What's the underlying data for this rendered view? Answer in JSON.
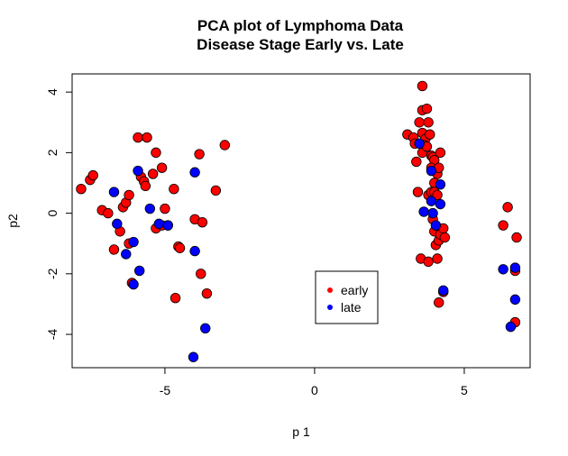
{
  "chart_data": {
    "type": "scatter",
    "title": "PCA plot of Lymphoma Data",
    "subtitle": "Disease Stage Early vs. Late",
    "xlabel": "p 1",
    "ylabel": "p2",
    "xlim": [
      -8.1,
      7.2
    ],
    "ylim": [
      -5.1,
      4.6
    ],
    "xticks": [
      -5,
      0,
      5
    ],
    "yticks": [
      -4,
      -2,
      0,
      2,
      4
    ],
    "xtick_labels": [
      "-5",
      "0",
      "5"
    ],
    "ytick_labels": [
      "-4",
      "-2",
      "0",
      "2",
      "4"
    ],
    "grid": false,
    "legend_position": "center-bottom",
    "series": [
      {
        "name": "early",
        "color": "#ff0000",
        "points": [
          [
            -7.8,
            0.8
          ],
          [
            -7.5,
            1.1
          ],
          [
            -7.4,
            1.25
          ],
          [
            -7.1,
            0.1
          ],
          [
            -6.9,
            0.0
          ],
          [
            -6.7,
            -1.2
          ],
          [
            -6.5,
            -0.6
          ],
          [
            -6.4,
            0.2
          ],
          [
            -6.3,
            0.35
          ],
          [
            -6.2,
            -1.0
          ],
          [
            -6.2,
            0.6
          ],
          [
            -6.1,
            -2.3
          ],
          [
            -5.9,
            2.5
          ],
          [
            -5.8,
            1.2
          ],
          [
            -5.7,
            1.05
          ],
          [
            -5.65,
            0.9
          ],
          [
            -5.6,
            2.5
          ],
          [
            -5.4,
            1.3
          ],
          [
            -5.3,
            2.0
          ],
          [
            -5.3,
            -0.5
          ],
          [
            -5.1,
            1.5
          ],
          [
            -5.1,
            -0.4
          ],
          [
            -5.0,
            0.15
          ],
          [
            -4.9,
            -0.4
          ],
          [
            -4.7,
            0.8
          ],
          [
            -4.55,
            -1.1
          ],
          [
            -4.5,
            -1.15
          ],
          [
            -4.65,
            -2.8
          ],
          [
            -4.0,
            -0.2
          ],
          [
            -3.85,
            1.95
          ],
          [
            -3.8,
            -2.0
          ],
          [
            -3.75,
            -0.3
          ],
          [
            -3.6,
            -2.65
          ],
          [
            -3.3,
            0.75
          ],
          [
            -3.0,
            2.25
          ],
          [
            3.1,
            2.6
          ],
          [
            3.3,
            2.5
          ],
          [
            3.35,
            2.3
          ],
          [
            3.4,
            1.7
          ],
          [
            3.45,
            0.7
          ],
          [
            3.5,
            3.0
          ],
          [
            3.6,
            3.4
          ],
          [
            3.6,
            4.2
          ],
          [
            3.6,
            2.65
          ],
          [
            3.7,
            2.45
          ],
          [
            3.65,
            2.25
          ],
          [
            3.6,
            2.0
          ],
          [
            3.75,
            3.45
          ],
          [
            3.8,
            3.0
          ],
          [
            3.85,
            2.6
          ],
          [
            3.75,
            2.2
          ],
          [
            3.9,
            1.9
          ],
          [
            3.95,
            1.85
          ],
          [
            4.0,
            1.75
          ],
          [
            3.9,
            1.5
          ],
          [
            4.0,
            1.0
          ],
          [
            4.1,
            1.3
          ],
          [
            4.15,
            1.5
          ],
          [
            4.2,
            2.0
          ],
          [
            3.8,
            0.6
          ],
          [
            3.9,
            0.7
          ],
          [
            4.0,
            0.7
          ],
          [
            4.1,
            0.6
          ],
          [
            3.95,
            -0.2
          ],
          [
            4.0,
            -0.6
          ],
          [
            4.05,
            -1.05
          ],
          [
            4.15,
            -0.9
          ],
          [
            4.2,
            -0.7
          ],
          [
            4.3,
            -0.5
          ],
          [
            4.35,
            -0.8
          ],
          [
            3.55,
            -1.5
          ],
          [
            3.8,
            -1.6
          ],
          [
            4.1,
            -1.5
          ],
          [
            4.15,
            -2.95
          ],
          [
            4.3,
            -2.6
          ],
          [
            6.3,
            -0.4
          ],
          [
            6.45,
            0.2
          ],
          [
            6.75,
            -0.8
          ],
          [
            6.7,
            -1.9
          ],
          [
            6.7,
            -3.6
          ]
        ]
      },
      {
        "name": "late",
        "color": "#0000ff",
        "points": [
          [
            -6.7,
            0.7
          ],
          [
            -6.6,
            -0.35
          ],
          [
            -6.3,
            -1.35
          ],
          [
            -6.05,
            -0.95
          ],
          [
            -6.05,
            -2.35
          ],
          [
            -5.9,
            1.4
          ],
          [
            -5.85,
            -1.9
          ],
          [
            -5.5,
            0.15
          ],
          [
            -5.2,
            -0.35
          ],
          [
            -4.9,
            -0.4
          ],
          [
            -4.0,
            1.35
          ],
          [
            -4.0,
            -1.25
          ],
          [
            -4.05,
            -4.75
          ],
          [
            -3.65,
            -3.8
          ],
          [
            3.5,
            2.3
          ],
          [
            3.65,
            0.05
          ],
          [
            3.9,
            1.4
          ],
          [
            3.9,
            0.4
          ],
          [
            3.95,
            0.0
          ],
          [
            4.05,
            -0.4
          ],
          [
            4.2,
            0.3
          ],
          [
            4.2,
            0.95
          ],
          [
            4.3,
            -2.55
          ],
          [
            6.3,
            -1.85
          ],
          [
            6.55,
            -3.75
          ],
          [
            6.7,
            -1.8
          ],
          [
            6.7,
            -2.85
          ]
        ]
      }
    ]
  }
}
